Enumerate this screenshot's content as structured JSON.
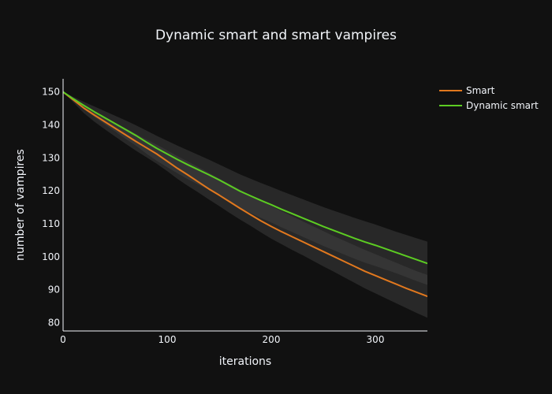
{
  "chart_data": {
    "type": "line",
    "title": "Dynamic smart and smart vampires",
    "xlabel": "iterations",
    "ylabel": "number of vampires",
    "xlim": [
      0,
      350
    ],
    "ylim": [
      77.5,
      154
    ],
    "x_ticks": [
      0,
      100,
      200,
      300
    ],
    "y_ticks": [
      80,
      90,
      100,
      110,
      120,
      130,
      140,
      150
    ],
    "grid": false,
    "legend_position": "top-right",
    "background": "#111111",
    "band_color": "#444444",
    "series": [
      {
        "name": "Smart",
        "color": "#e1781e",
        "x": [
          0,
          10,
          20,
          30,
          40,
          50,
          60,
          70,
          80,
          90,
          100,
          110,
          120,
          130,
          140,
          150,
          160,
          170,
          180,
          190,
          200,
          210,
          220,
          230,
          240,
          250,
          260,
          270,
          280,
          290,
          300,
          310,
          320,
          330,
          340,
          350
        ],
        "values": [
          150,
          147.6,
          145.1,
          143.0,
          141.0,
          139.0,
          137.0,
          135.0,
          133.1,
          131.2,
          129.0,
          126.8,
          124.8,
          122.7,
          120.6,
          118.7,
          116.7,
          114.7,
          112.8,
          110.9,
          109.2,
          107.6,
          106.1,
          104.6,
          103.1,
          101.6,
          100.1,
          98.6,
          97.1,
          95.6,
          94.3,
          93.0,
          91.7,
          90.4,
          89.2,
          88.0
        ],
        "band_upper": [
          150,
          148.1,
          146.0,
          144.2,
          142.5,
          140.7,
          139.0,
          137.3,
          135.6,
          134.0,
          132.3,
          130.5,
          128.9,
          127.2,
          125.5,
          123.8,
          122.1,
          120.4,
          118.7,
          117.0,
          115.4,
          113.8,
          112.3,
          110.8,
          109.3,
          107.8,
          106.3,
          104.9,
          103.5,
          102.1,
          100.8,
          99.5,
          98.2,
          96.9,
          95.6,
          94.5
        ],
        "band_lower": [
          150,
          146.8,
          143.6,
          141.0,
          138.7,
          136.5,
          134.3,
          132.2,
          130.2,
          128.2,
          126.0,
          123.6,
          121.5,
          119.5,
          117.4,
          115.4,
          113.3,
          111.3,
          109.4,
          107.4,
          105.5,
          103.8,
          102.1,
          100.5,
          98.8,
          97.1,
          95.5,
          93.8,
          92.1,
          90.4,
          88.9,
          87.4,
          85.9,
          84.4,
          82.9,
          81.5
        ]
      },
      {
        "name": "Dynamic smart",
        "color": "#5ccc22",
        "x": [
          0,
          10,
          20,
          30,
          40,
          50,
          60,
          70,
          80,
          90,
          100,
          110,
          120,
          130,
          140,
          150,
          160,
          170,
          180,
          190,
          200,
          210,
          220,
          230,
          240,
          250,
          260,
          270,
          280,
          290,
          300,
          310,
          320,
          330,
          340,
          350
        ],
        "values": [
          150,
          147.9,
          145.9,
          144.0,
          142.2,
          140.4,
          138.6,
          136.8,
          134.8,
          132.9,
          131.2,
          129.5,
          127.9,
          126.4,
          124.9,
          123.3,
          121.6,
          119.9,
          118.5,
          117.1,
          115.8,
          114.4,
          113.1,
          111.8,
          110.5,
          109.2,
          108.0,
          106.8,
          105.6,
          104.5,
          103.5,
          102.4,
          101.3,
          100.2,
          99.1,
          98.0
        ],
        "band_upper": [
          150,
          148.5,
          147.0,
          145.6,
          144.2,
          142.8,
          141.4,
          139.9,
          138.3,
          136.7,
          135.2,
          133.7,
          132.3,
          130.9,
          129.5,
          128.0,
          126.5,
          125.0,
          123.7,
          122.4,
          121.2,
          119.9,
          118.7,
          117.5,
          116.3,
          115.1,
          114.0,
          112.9,
          111.8,
          110.8,
          109.8,
          108.7,
          107.6,
          106.6,
          105.6,
          104.6
        ],
        "band_lower": [
          150,
          147.3,
          144.8,
          142.4,
          140.2,
          138.0,
          135.8,
          133.7,
          131.3,
          129.1,
          127.2,
          125.3,
          123.5,
          121.9,
          120.3,
          118.6,
          116.7,
          114.8,
          113.3,
          111.8,
          110.4,
          108.9,
          107.5,
          106.1,
          104.7,
          103.3,
          102.0,
          100.7,
          99.4,
          98.2,
          97.2,
          96.1,
          95.0,
          93.8,
          92.6,
          91.5
        ]
      }
    ]
  }
}
